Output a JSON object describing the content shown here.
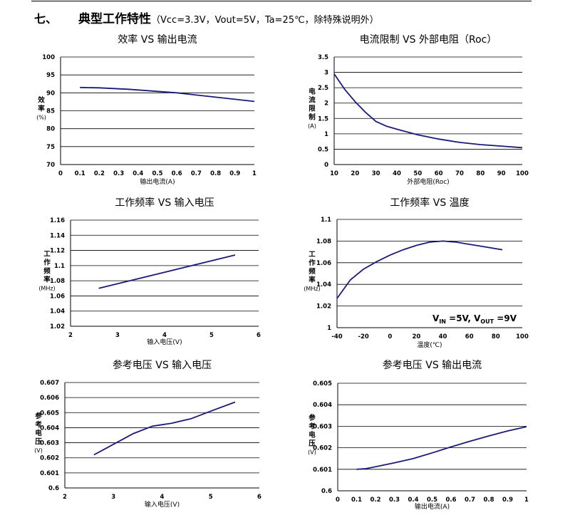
{
  "section": {
    "number": "七、",
    "title": "典型工作特性",
    "conditions": "（Vcc=3.3V，Vout=5V，Ta=25℃，除特殊说明外）"
  },
  "colors": {
    "line": "#1a1a7a",
    "grid": "#000000",
    "axis": "#000000"
  },
  "chart_data": [
    {
      "id": "efficiency",
      "type": "line",
      "title": "效率 VS 输出电流",
      "ylabel": [
        "效",
        "率",
        "(%)"
      ],
      "xlabel": "输出电流(A)",
      "xlim": [
        0,
        1
      ],
      "ylim": [
        70,
        100
      ],
      "xticks": [
        "0",
        "0.1",
        "0.2",
        "0.3",
        "0.4",
        "0.5",
        "0.6",
        "0.7",
        "0.8",
        "0.9",
        "1"
      ],
      "yticks": [
        "70",
        "75",
        "80",
        "85",
        "90",
        "95",
        "100"
      ],
      "series": [
        {
          "x": [
            0.1,
            0.2,
            0.35,
            0.5,
            0.6,
            0.7,
            0.8,
            0.9,
            1.0
          ],
          "y": [
            91.5,
            91.4,
            91.0,
            90.4,
            90.0,
            89.4,
            88.8,
            88.2,
            87.6
          ]
        }
      ]
    },
    {
      "id": "current-limit",
      "type": "line",
      "title": "电流限制 VS 外部电阻（Roc）",
      "ylabel": [
        "电",
        "流",
        "限",
        "制",
        "(A)"
      ],
      "xlabel": "外部电阻(Roc)",
      "xlim": [
        10,
        100
      ],
      "ylim": [
        0,
        3.5
      ],
      "xticks": [
        "10",
        "20",
        "30",
        "40",
        "50",
        "60",
        "70",
        "80",
        "90",
        "100"
      ],
      "yticks": [
        "0",
        "0.5",
        "1",
        "1.5",
        "2",
        "2.5",
        "3",
        "3.5"
      ],
      "series": [
        {
          "x": [
            10,
            15,
            20,
            25,
            30,
            35,
            40,
            50,
            60,
            70,
            80,
            90,
            100
          ],
          "y": [
            2.95,
            2.45,
            2.05,
            1.7,
            1.4,
            1.25,
            1.15,
            0.97,
            0.83,
            0.72,
            0.65,
            0.6,
            0.55
          ]
        }
      ]
    },
    {
      "id": "freq-vs-vin",
      "type": "line",
      "title": "工作频率 VS 输入电压",
      "ylabel": [
        "工",
        "作",
        "频",
        "率",
        "(MHz)"
      ],
      "xlabel": "输入电压(V)",
      "xlim": [
        2,
        6
      ],
      "ylim": [
        1.02,
        1.16
      ],
      "xticks": [
        "2",
        "3",
        "4",
        "5",
        "6"
      ],
      "yticks": [
        "1.02",
        "1.04",
        "1.06",
        "1.08",
        "1.1",
        "1.12",
        "1.14",
        "1.16"
      ],
      "series": [
        {
          "x": [
            2.6,
            5.5
          ],
          "y": [
            1.07,
            1.114
          ]
        }
      ]
    },
    {
      "id": "freq-vs-temp",
      "type": "line",
      "title": "工作频率 VS 温度",
      "ylabel": [
        "工",
        "作",
        "频",
        "率",
        "(MHz)"
      ],
      "xlabel": "温度(℃)",
      "xlim": [
        -40,
        100
      ],
      "ylim": [
        1,
        1.1
      ],
      "xticks": [
        "-40",
        "-20",
        "0",
        "20",
        "40",
        "60",
        "80",
        "100"
      ],
      "yticks": [
        "1",
        "1.02",
        "1.04",
        "1.06",
        "1.08",
        "1.1"
      ],
      "annotation": {
        "vin": "V",
        "vin_sub": "IN",
        "vin_val": " =5V, ",
        "vout": "V",
        "vout_sub": "OUT",
        "vout_val": " =9V"
      },
      "series": [
        {
          "x": [
            -40,
            -30,
            -20,
            -10,
            0,
            10,
            20,
            30,
            40,
            50,
            60,
            70,
            85
          ],
          "y": [
            1.027,
            1.044,
            1.054,
            1.061,
            1.067,
            1.072,
            1.076,
            1.079,
            1.08,
            1.079,
            1.077,
            1.075,
            1.072
          ]
        }
      ]
    },
    {
      "id": "vref-vs-vin",
      "type": "line",
      "title": "参考电压 VS 输入电压",
      "ylabel": [
        "参",
        "考",
        "电",
        "压",
        "(V)"
      ],
      "xlabel": "输入电压(V)",
      "xlim": [
        2,
        6
      ],
      "ylim": [
        0.6,
        0.607
      ],
      "xticks": [
        "2",
        "3",
        "4",
        "5",
        "6"
      ],
      "yticks": [
        "0.6",
        "0.601",
        "0.602",
        "0.603",
        "0.604",
        "0.605",
        "0.606",
        "0.607"
      ],
      "series": [
        {
          "x": [
            2.6,
            3.0,
            3.4,
            3.8,
            4.2,
            4.6,
            5.0,
            5.5
          ],
          "y": [
            0.6022,
            0.6029,
            0.6036,
            0.6041,
            0.6043,
            0.6046,
            0.6051,
            0.6057
          ]
        }
      ]
    },
    {
      "id": "vref-vs-iout",
      "type": "line",
      "title": "参考电压 VS 输出电流",
      "ylabel": [
        "参",
        "考",
        "电",
        "压",
        "(V)"
      ],
      "xlabel": "输出电流(A)",
      "xlim": [
        0,
        1
      ],
      "ylim": [
        0.6,
        0.605
      ],
      "xticks": [
        "0",
        "0.1",
        "0.2",
        "0.3",
        "0.4",
        "0.5",
        "0.6",
        "0.7",
        "0.8",
        "0.9",
        "1"
      ],
      "yticks": [
        "0.6",
        "0.601",
        "0.602",
        "0.603",
        "0.604",
        "0.605"
      ],
      "series": [
        {
          "x": [
            0.1,
            0.15,
            0.2,
            0.3,
            0.4,
            0.5,
            0.6,
            0.7,
            0.8,
            0.9,
            1.0
          ],
          "y": [
            0.601,
            0.60103,
            0.60112,
            0.6013,
            0.6015,
            0.60176,
            0.60204,
            0.6023,
            0.60255,
            0.60278,
            0.60298
          ]
        }
      ]
    }
  ]
}
